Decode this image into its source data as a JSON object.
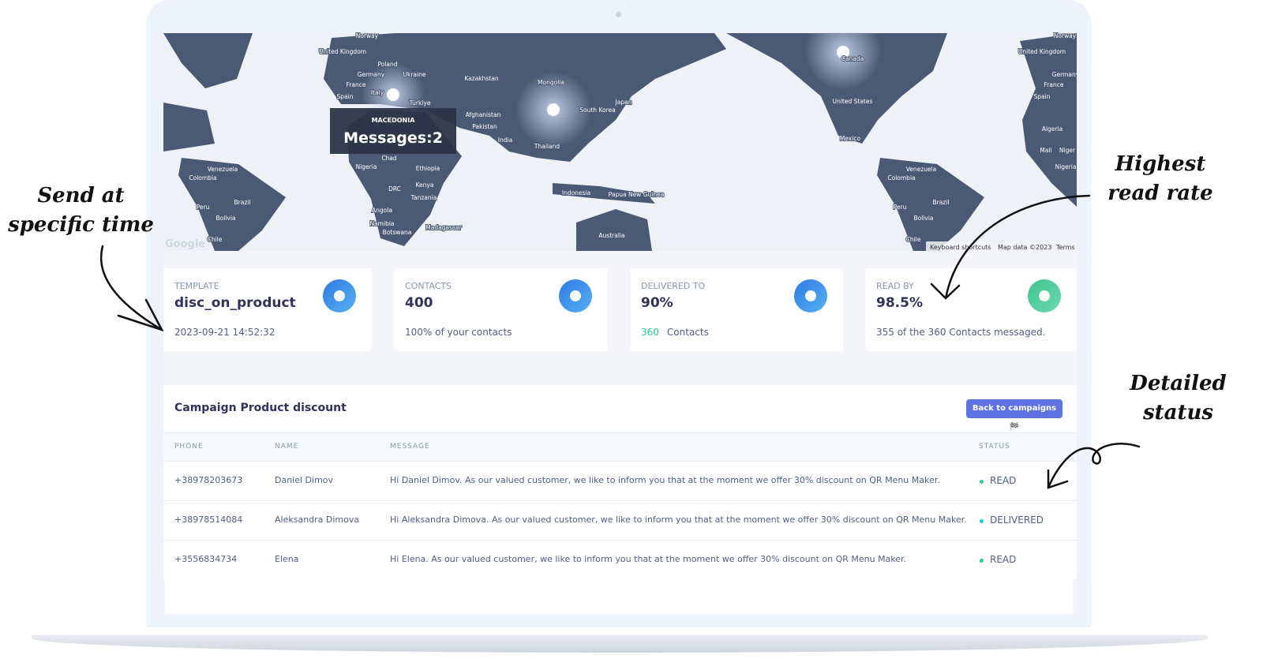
{
  "map": {
    "labels": [
      "Norway",
      "United Kingdom",
      "Poland",
      "Ukraine",
      "Germany",
      "France",
      "Spain",
      "Italy",
      "Türkiye",
      "Kazakhstan",
      "Mongolia",
      "Afghanistan",
      "Pakistan",
      "India",
      "South Korea",
      "Japan",
      "Thailand",
      "Chad",
      "Nigeria",
      "Ethiopia",
      "DRC",
      "Kenya",
      "Tanzania",
      "Angola",
      "Namibia",
      "Botswana",
      "Madagascar",
      "Indonesia",
      "Papua New Guinea",
      "Australia",
      "Venezuela",
      "Colombia",
      "Peru",
      "Brazil",
      "Bolivia",
      "Chile",
      "Canada",
      "United States",
      "Mexico",
      "Venezuela",
      "Colombia",
      "Peru",
      "Brazil",
      "Bolivia",
      "Chile",
      "Norway",
      "United Kingdom",
      "Germany",
      "France",
      "Spain",
      "Algeria",
      "Mali",
      "Niger",
      "Nigeria"
    ],
    "tooltip": {
      "title": "MACEDONIA",
      "text": "Messages:2"
    },
    "logo": "Google",
    "attribution": [
      "Keyboard shortcuts",
      "Map data ©2023",
      "Terms"
    ]
  },
  "cards": [
    {
      "label": "TEMPLATE",
      "value": "disc_on_product",
      "footer": "2023-09-21 14:52:32"
    },
    {
      "label": "CONTACTS",
      "value": "400",
      "footer": "100% of your contacts"
    },
    {
      "label": "DELIVERED TO",
      "value": "90%",
      "footer_count": "360",
      "footer": "Contacts"
    },
    {
      "label": "READ BY",
      "value": "98.5%",
      "footer": "355 of the 360 Contacts messaged."
    }
  ],
  "table": {
    "title": "Campaign Product discount",
    "button": "Back to campaigns 🏁",
    "columns": [
      "PHONE",
      "NAME",
      "MESSAGE",
      "STATUS"
    ],
    "rows": [
      [
        "+38978203673",
        "Daniel Dimov",
        "Hi Daniel Dimov. As our valued customer, we like to inform you that at the moment we offer 30% discount on QR Menu Maker.",
        "READ"
      ],
      [
        "+38978514084",
        "Aleksandra Dimova",
        "Hi Aleksandra Dimova. As our valued customer, we like to inform you that at the moment we offer 30% discount on QR Menu Maker.",
        "DELIVERED"
      ],
      [
        "+3556834734",
        "Elena",
        "Hi Elena. As our valued customer, we like to inform you that at the moment we offer 30% discount on QR Menu Maker.",
        "READ"
      ]
    ]
  },
  "annotations": [
    "Send at specific time",
    "Highest read rate",
    "Detailed status"
  ]
}
